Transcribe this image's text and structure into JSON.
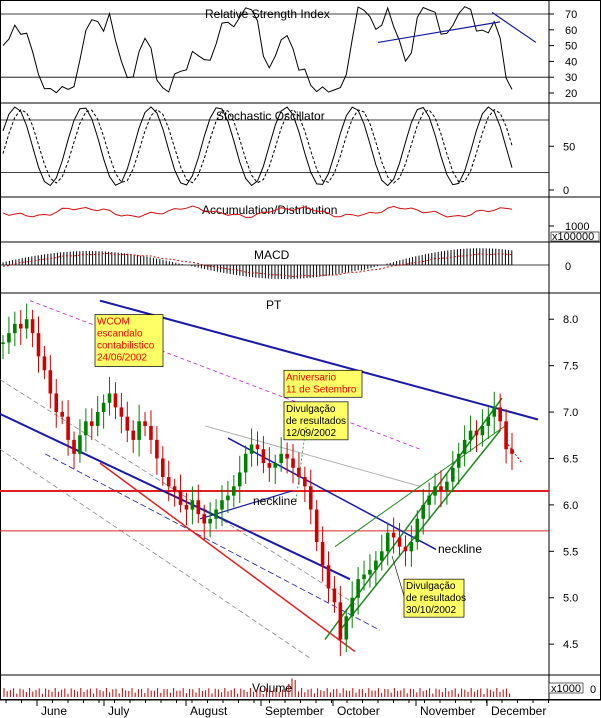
{
  "chart_data": {
    "type": "line",
    "ticker": "PT",
    "x_axis": {
      "months": [
        "June",
        "July",
        "August",
        "September",
        "October",
        "November",
        "December"
      ]
    },
    "panels": [
      {
        "name": "Relative Strength Index",
        "yticks": [
          20,
          30,
          40,
          50,
          60,
          70
        ],
        "guides": [
          70,
          30
        ]
      },
      {
        "name": "Stochastic Oscillator",
        "yticks": [
          0,
          50
        ],
        "guides": [
          80,
          20
        ]
      },
      {
        "name": "Accumulation/Distribution",
        "ytick_label": "1000",
        "unit_label": "x100000"
      },
      {
        "name": "MACD",
        "yticks": [
          0
        ]
      },
      {
        "name": "PT",
        "yticks": [
          4.5,
          5.0,
          5.5,
          6.0,
          6.5,
          7.0,
          7.5,
          8.0
        ],
        "ylim": [
          4.2,
          8.25
        ]
      },
      {
        "name": "Volume",
        "ytick_label": "0",
        "unit_label": "x1000"
      }
    ],
    "price_series": {
      "name": "PT",
      "values": [
        7.75,
        7.85,
        7.95,
        7.9,
        8.0,
        7.85,
        7.6,
        7.45,
        7.2,
        7.0,
        6.95,
        6.7,
        6.55,
        6.75,
        6.9,
        6.85,
        7.0,
        7.1,
        7.2,
        7.05,
        6.95,
        6.8,
        6.7,
        6.9,
        6.85,
        6.7,
        6.5,
        6.3,
        6.2,
        6.15,
        6.0,
        5.95,
        6.05,
        5.9,
        5.8,
        5.85,
        5.95,
        6.05,
        6.1,
        6.2,
        6.35,
        6.55,
        6.65,
        6.6,
        6.45,
        6.4,
        6.45,
        6.55,
        6.5,
        6.4,
        6.3,
        6.2,
        5.95,
        5.6,
        5.35,
        5.1,
        4.95,
        4.55,
        4.8,
        5.0,
        5.2,
        5.25,
        5.3,
        5.4,
        5.5,
        5.7,
        5.65,
        5.55,
        5.5,
        5.6,
        5.85,
        6.0,
        6.1,
        6.2,
        6.15,
        6.25,
        6.4,
        6.55,
        6.7,
        6.8,
        6.75,
        6.85,
        6.95,
        7.05,
        6.9,
        6.6,
        6.55
      ]
    },
    "horizontal_lines": [
      6.15,
      5.72
    ],
    "trendline_labels": [
      "neckline",
      "neckline"
    ],
    "annotations": [
      {
        "text": [
          "WCOM",
          "escandalo",
          "contabilistico",
          "24/06/2002"
        ],
        "color": "#ff0000",
        "background": "#ffff66"
      },
      {
        "text": [
          "Aniversario",
          "11 de Setembro"
        ],
        "color": "#ff0000",
        "background": "#ffff66"
      },
      {
        "text": [
          "Divulgação",
          "de resultados",
          "12/09/2002"
        ],
        "color": "#000000",
        "background": "#ffff66"
      },
      {
        "text": [
          "Divulgação",
          "de resultados",
          "30/10/2002"
        ],
        "color": "#000000",
        "background": "#ffff66"
      }
    ],
    "colors": {
      "trend_blue": "#1a1aa8",
      "support_red": "#e02020",
      "channel_green": "#1e8a1e",
      "ad_line": "#d01010",
      "annotation_bg": "#ffff66"
    }
  }
}
